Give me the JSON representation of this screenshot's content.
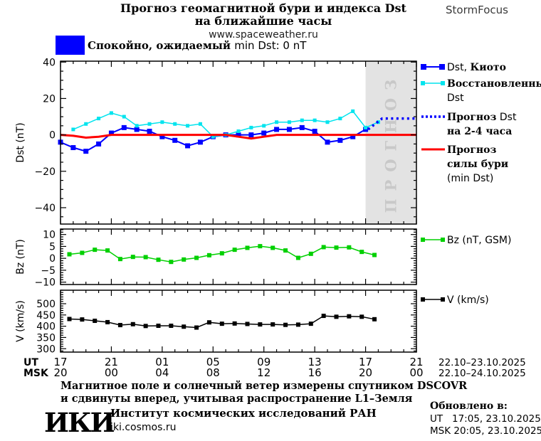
{
  "header": {
    "title_line1": "Прогноз геомагнитной бури и индекса Dst",
    "title_line2": "на ближайшие часы",
    "site": "www.spaceweather.ru",
    "brand": "StormFocus"
  },
  "status": {
    "box_color": "#0000ff",
    "text_cyr": "Спокойно, ожидаемый",
    "text_lat": "min Dst: 0 nT"
  },
  "legend_main": {
    "item1_lat": "Dst,",
    "item1_cyr": "Киото",
    "item2_line1": "Восстановленный",
    "item2_line2": "Dst",
    "item3_line1_cyr": "Прогноз",
    "item3_line1_lat": "Dst",
    "item3_line2": "на 2-4 часа",
    "item4_line1": "Прогноз",
    "item4_line2": "силы бури",
    "item4_line3": "(min Dst)"
  },
  "legend_bz": "Bz (nT, GSM)",
  "legend_v": "V (km/s)",
  "footer": {
    "note_line1": "Магнитное поле и солнечный ветер измерены спутником DSCOVR",
    "note_line2": "и сдвинуты вперед, учитывая распространение L1–Земля",
    "logo": "ИКИ",
    "institute": "Институт космических исследований РАН",
    "institute_site": "iki.cosmos.ru",
    "updated_label": "Обновлено в:",
    "updated_ut": "UT   17:05, 23.10.2025",
    "updated_msk": "MSK 20:05, 23.10.2025"
  },
  "chart_data": {
    "type": "line",
    "title": "Прогноз геомагнитной бури и индекса Dst на ближайшие часы",
    "x_axis": {
      "unit": "hours, starting 17 UT 22.10.2025",
      "range": [
        0,
        28
      ],
      "major_tick_step": 4,
      "minor_tick_step": 1,
      "tick_labels_ut": [
        "17",
        "21",
        "01",
        "05",
        "09",
        "13",
        "17",
        "21"
      ],
      "tick_labels_msk": [
        "20",
        "00",
        "04",
        "08",
        "12",
        "16",
        "20",
        "00"
      ],
      "ut_label": "UT",
      "msk_label": "MSK",
      "date_ut": "22.10–23.10.2025",
      "date_msk": "22.10–24.10.2025"
    },
    "forecast_band": {
      "start": 24,
      "end": 28,
      "label": "ПРОГНОЗ",
      "fill": "#e3e3e3",
      "label_color": "#c8c8c8"
    },
    "panels": [
      {
        "id": "dst",
        "ylabel": "Dst (nT)",
        "ylim": [
          -49,
          40.5
        ],
        "ytick_major": [
          40,
          20,
          0,
          -20,
          -40
        ],
        "ytick_minor_step": 5,
        "series": [
          {
            "name": "Dst, Киото",
            "color": "#0000ff",
            "line_width": 2,
            "marker_size": 7,
            "x0": 0,
            "dx": 1,
            "values": [
              -4,
              -7,
              -9,
              -5,
              1,
              4,
              3,
              2,
              -1,
              -3,
              -6,
              -4,
              -1,
              0,
              0,
              0,
              1,
              3,
              3,
              4,
              2,
              -4,
              -3,
              -1,
              3
            ]
          },
          {
            "name": "Восстановленный Dst",
            "color": "#00e4ee",
            "line_width": 1.5,
            "marker_size": 5,
            "x0": 1,
            "dx": 1,
            "values": [
              3,
              6,
              9,
              12,
              10,
              5,
              6,
              7,
              6,
              5,
              6,
              -1,
              0,
              2,
              4,
              5,
              7,
              7,
              8,
              8,
              7,
              9,
              13,
              4,
              7
            ]
          },
          {
            "name": "Прогноз Dst на 2-4 часа",
            "color": "#0000ff",
            "style": "dotted",
            "line_width": 3.5,
            "points": [
              [
                24.2,
                3
              ],
              [
                25.3,
                9
              ],
              [
                27.9,
                9
              ]
            ]
          },
          {
            "name": "Прогноз силы бури (min Dst)",
            "color": "#ff0000",
            "line_width": 3,
            "x0": 0,
            "dx": 1,
            "values": [
              0,
              -0.5,
              -1.5,
              -1,
              0,
              0,
              0,
              0,
              0,
              0,
              0,
              0,
              0,
              0,
              -1,
              -2,
              -1,
              0,
              0,
              0,
              0,
              0,
              0,
              0,
              0,
              0,
              0,
              0,
              0
            ]
          }
        ]
      },
      {
        "id": "bz",
        "ylabel": "Bz (nT)",
        "ylim": [
          -11,
          12.3
        ],
        "ytick_major": [
          10,
          5,
          0,
          -5,
          -10
        ],
        "ytick_minor_step": 1,
        "series": [
          {
            "name": "Bz (nT, GSM)",
            "color": "#00d000",
            "line_width": 1.5,
            "marker_size": 6,
            "x0": 0.7,
            "dx": 1,
            "values": [
              1.7,
              2.3,
              3.6,
              3.3,
              -0.3,
              0.6,
              0.5,
              -0.6,
              -1.5,
              -0.5,
              0.2,
              1.3,
              2.1,
              3.6,
              4.4,
              5.1,
              4.4,
              3.3,
              0.2,
              1.9,
              4.7,
              4.5,
              4.6,
              2.7,
              1.4
            ]
          }
        ]
      },
      {
        "id": "v",
        "ylabel": "V (km/s)",
        "ylim": [
          285,
          560
        ],
        "ytick_major": [
          500,
          450,
          400,
          350,
          300
        ],
        "ytick_minor_step": 10,
        "series": [
          {
            "name": "V (km/s)",
            "color": "#000000",
            "line_width": 1.5,
            "marker_size": 6,
            "x0": 0.7,
            "dx": 1,
            "values": [
              432,
              430,
              424,
              418,
              405,
              409,
              401,
              402,
              402,
              398,
              394,
              417,
              411,
              412,
              410,
              408,
              408,
              406,
              407,
              411,
              446,
              442,
              444,
              442,
              431
            ]
          }
        ]
      }
    ]
  }
}
